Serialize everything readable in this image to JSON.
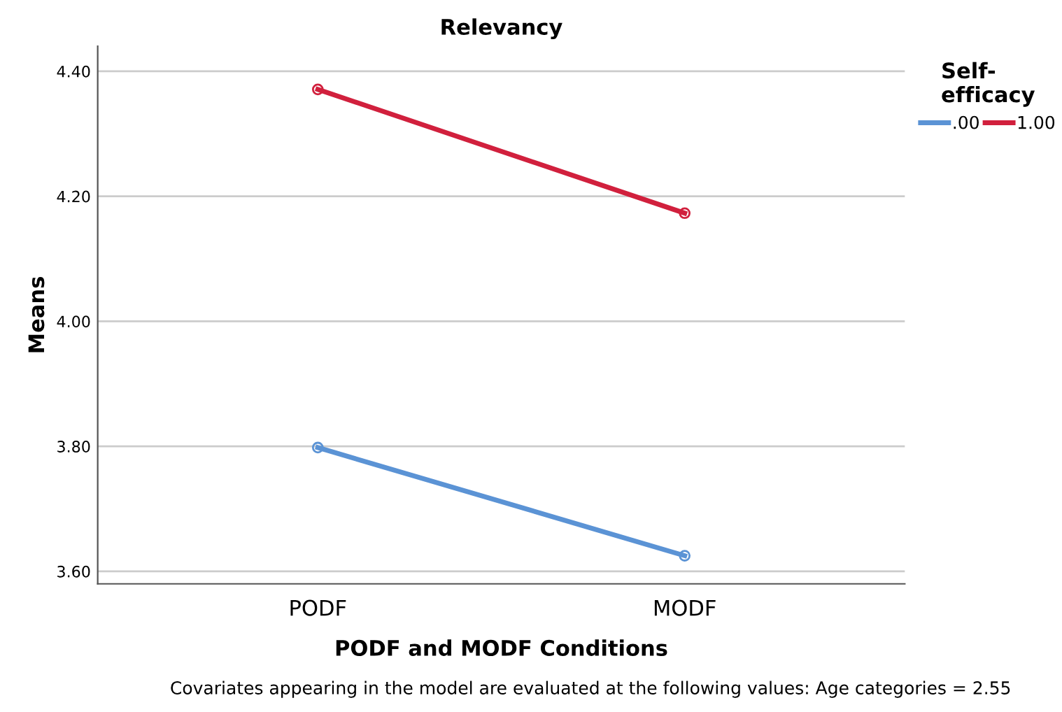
{
  "chart_data": {
    "type": "line",
    "title": "Relevancy",
    "xlabel": "PODF and MODF Conditions",
    "ylabel": "Means",
    "legend_title": "Self-\nefficacy",
    "categories": [
      "PODF",
      "MODF"
    ],
    "series": [
      {
        "name": ".00",
        "color": "#5b93d5",
        "values": [
          3.798,
          3.625
        ]
      },
      {
        "name": "1.00",
        "color": "#d1203d",
        "values": [
          4.371,
          4.173
        ]
      }
    ],
    "ylim": [
      3.58,
      4.44
    ],
    "yticks": [
      {
        "value": 3.6,
        "label": "3.60"
      },
      {
        "value": 3.8,
        "label": "3.80"
      },
      {
        "value": 4.0,
        "label": "4.00"
      },
      {
        "value": 4.2,
        "label": "4.20"
      },
      {
        "value": 4.4,
        "label": "4.40"
      }
    ],
    "grid": "y",
    "legend": "top right",
    "marker": "circle",
    "line_style": "solid",
    "annotations": [
      "Covariates appearing in the model are evaluated at the following values: Age categories = 2.55"
    ]
  }
}
